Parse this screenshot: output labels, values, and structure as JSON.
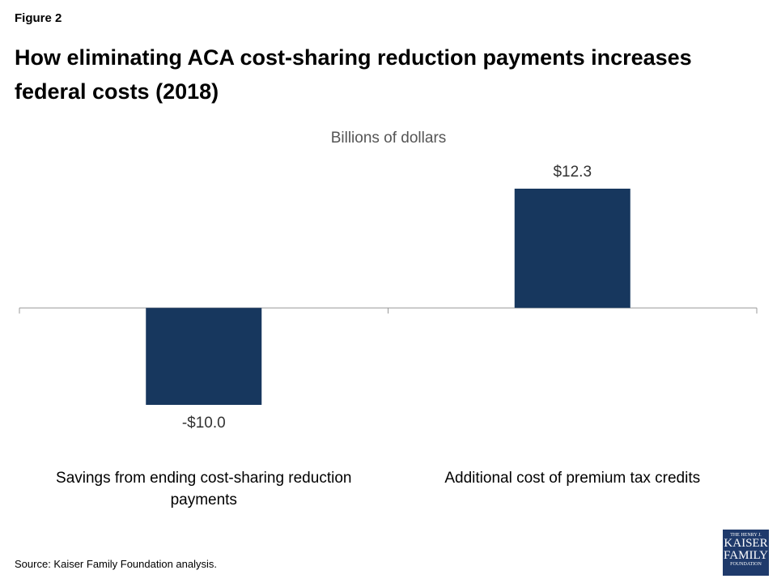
{
  "figure_label": "Figure 2",
  "source": "Source: Kaiser Family Foundation analysis.",
  "logo": [
    "THE HENRY J.",
    "KAISER",
    "FAMILY",
    "FOUNDATION"
  ],
  "chart_data": {
    "type": "bar",
    "title": "How eliminating ACA cost-sharing reduction payments increases federal costs (2018)",
    "subtitle": "Billions of dollars",
    "categories": [
      "Savings from ending cost-sharing reduction payments",
      "Additional cost of premium tax credits"
    ],
    "values": [
      -10.0,
      12.3
    ],
    "value_labels": [
      "-$10.0",
      "$12.3"
    ],
    "color": "#17375e"
  }
}
